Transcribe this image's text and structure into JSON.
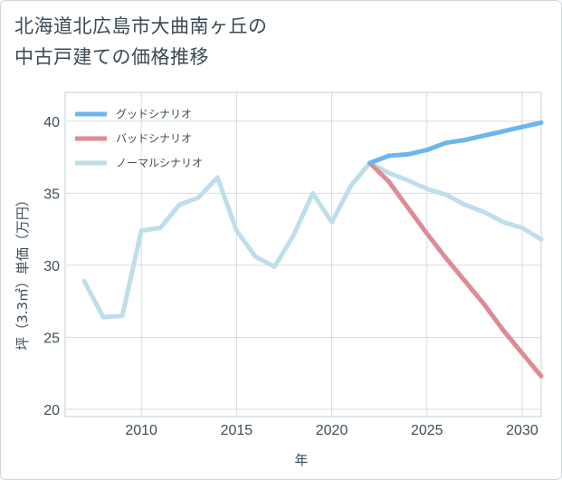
{
  "title_lines": [
    "北海道北広島市大曲南ヶ丘の",
    "中古戸建ての価格推移"
  ],
  "chart_data": {
    "type": "line",
    "title": "北海道北広島市大曲南ヶ丘の中古戸建ての価格推移",
    "xlabel": "年",
    "ylabel": "坪（3.3㎡）単価（万円）",
    "xlim": [
      2006,
      2031
    ],
    "ylim": [
      19.5,
      42
    ],
    "x_ticks": [
      2010,
      2015,
      2020,
      2025,
      2030
    ],
    "y_ticks": [
      20,
      25,
      30,
      35,
      40
    ],
    "grid": true,
    "legend_position": "top-left",
    "series": [
      {
        "name": "グッドシナリオ",
        "color": "#6cb6ea",
        "x": [
          2022,
          2023,
          2024,
          2025,
          2026,
          2027,
          2028,
          2029,
          2030,
          2031
        ],
        "values": [
          37.1,
          37.6,
          37.7,
          38.0,
          38.5,
          38.7,
          39.0,
          39.3,
          39.6,
          39.9
        ]
      },
      {
        "name": "バッドシナリオ",
        "color": "#dd8b94",
        "x": [
          2022,
          2023,
          2024,
          2025,
          2026,
          2027,
          2028,
          2029,
          2030,
          2031
        ],
        "values": [
          37.1,
          35.8,
          34.0,
          32.2,
          30.5,
          28.9,
          27.3,
          25.5,
          23.9,
          22.3
        ]
      },
      {
        "name": "ノーマルシナリオ",
        "color": "#bedeea",
        "x": [
          2007,
          2008,
          2009,
          2010,
          2011,
          2012,
          2013,
          2014,
          2015,
          2016,
          2017,
          2018,
          2019,
          2020,
          2021,
          2022,
          2023,
          2024,
          2025,
          2026,
          2027,
          2028,
          2029,
          2030,
          2031
        ],
        "values": [
          28.9,
          26.4,
          26.5,
          32.4,
          32.6,
          34.2,
          34.7,
          36.1,
          32.4,
          30.6,
          29.9,
          32.1,
          35.0,
          33.0,
          35.5,
          37.1,
          36.4,
          35.9,
          35.3,
          34.9,
          34.2,
          33.7,
          33.0,
          32.6,
          31.8
        ]
      }
    ]
  }
}
